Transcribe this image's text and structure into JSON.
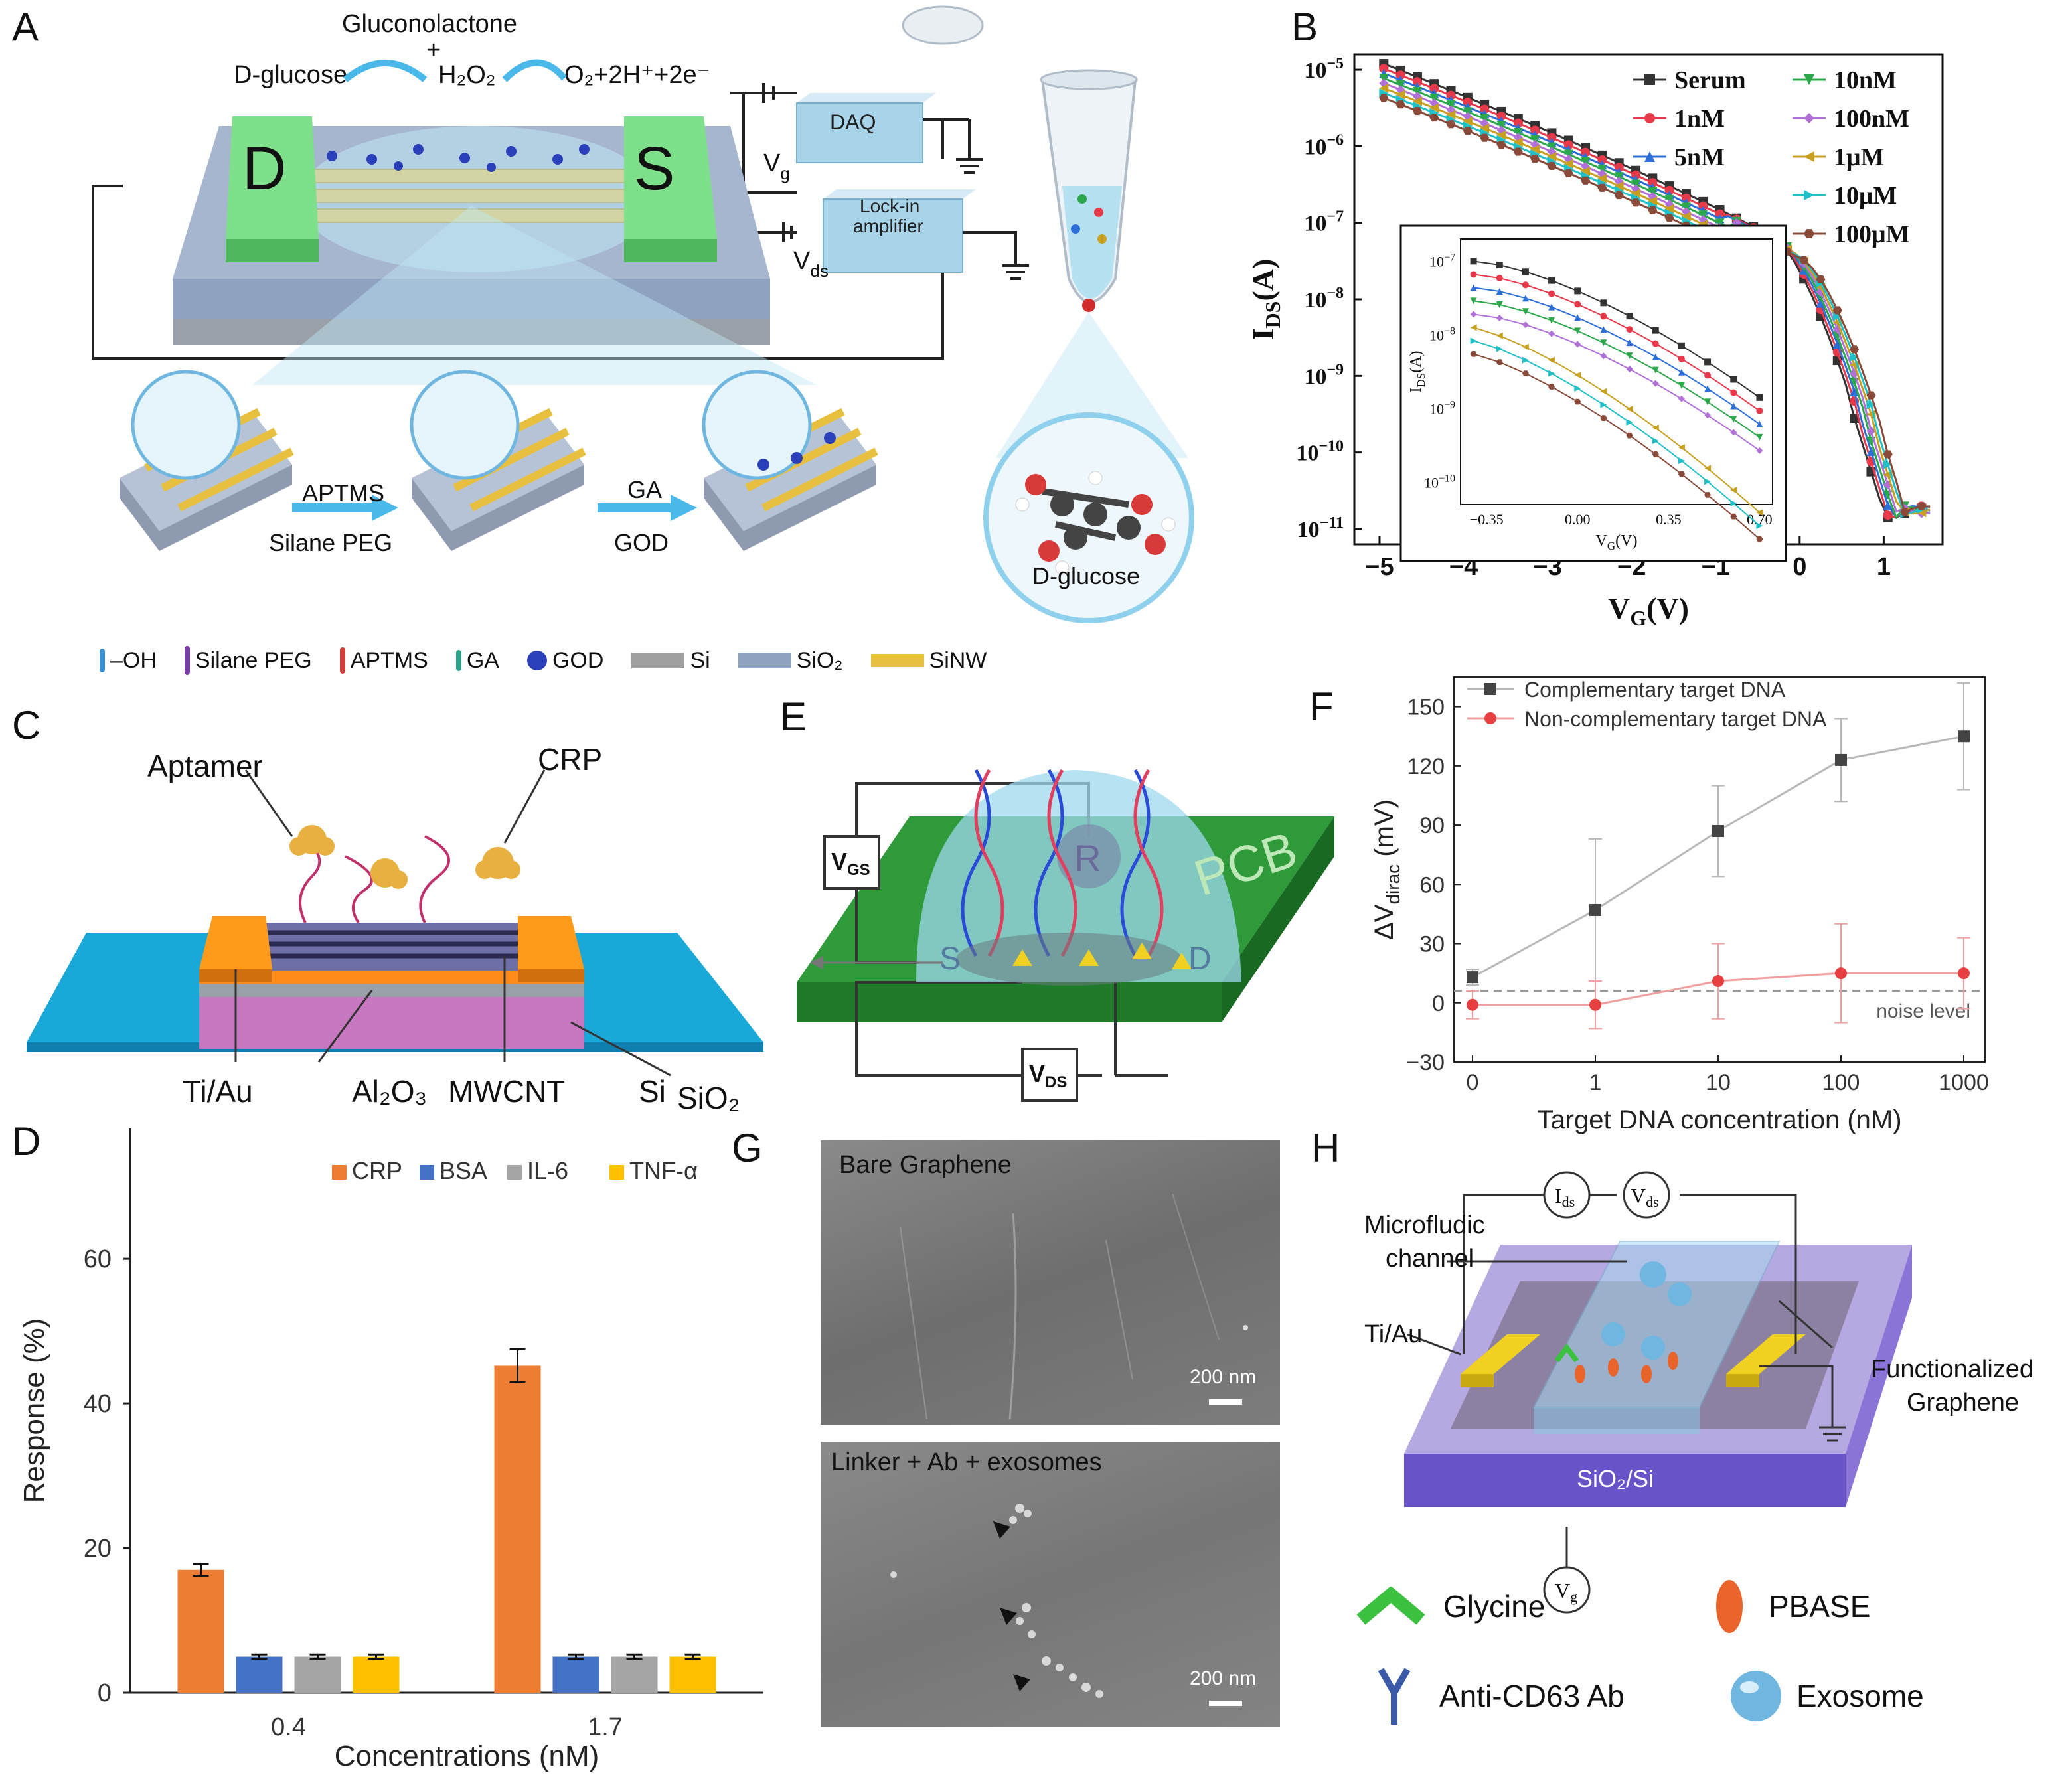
{
  "panels": {
    "A": {
      "label": "A",
      "reaction": {
        "left": "D-glucose",
        "mid_top": "Gluconolactone",
        "plus": "+",
        "mid_bottom": "H₂O₂",
        "right": "O₂+2H⁺+2e⁻"
      },
      "device": {
        "drain": "D",
        "source": "S",
        "daq": "DAQ",
        "lockin_line1": "Lock-in",
        "lockin_line2": "amplifier",
        "vg": "V",
        "vg_sub": "g",
        "vds": "V",
        "vds_sub": "ds"
      },
      "steps": {
        "step1_top": "APTMS",
        "step1_bottom": "Silane PEG",
        "step2_top": "GA",
        "step2_bottom": "GOD"
      },
      "molecule_label": "D-glucose",
      "legend": [
        {
          "label": "–OH",
          "color": "#3a8fd0"
        },
        {
          "label": "Silane PEG",
          "color": "#7a3ea8"
        },
        {
          "label": "APTMS",
          "color": "#d0403a"
        },
        {
          "label": "GA",
          "color": "#2aa08a"
        },
        {
          "label": "GOD",
          "color": "#2a3fb8"
        },
        {
          "label": "Si",
          "color": "#a0a0a0"
        },
        {
          "label": "SiO₂",
          "color": "#8fa3c0"
        },
        {
          "label": "SiNW",
          "color": "#e8c040"
        }
      ]
    },
    "B": {
      "label": "B",
      "chart_data": {
        "type": "line",
        "xlabel": "V",
        "xlabel_sub": "G",
        "xlabel_unit": "(V)",
        "ylabel": "I",
        "ylabel_sub": "DS",
        "ylabel_unit": "(A)",
        "xlim": [
          -5.3,
          1.7
        ],
        "ylim_log10": [
          -11.2,
          -4.8
        ],
        "xticks": [
          -5,
          -4,
          -3,
          -2,
          -1,
          0,
          1
        ],
        "yticks_exp": [
          -11,
          -10,
          -9,
          -8,
          -7,
          -6,
          -5
        ],
        "y_tick_base": "10",
        "series": [
          {
            "name": "Serum",
            "color": "#333333",
            "marker": "square"
          },
          {
            "name": "1nM",
            "color": "#e8394a",
            "marker": "circle"
          },
          {
            "name": "5nM",
            "color": "#2d6fd8",
            "marker": "triangle"
          },
          {
            "name": "10nM",
            "color": "#2aa84a",
            "marker": "triangle-down"
          },
          {
            "name": "100nM",
            "color": "#b070d8",
            "marker": "diamond"
          },
          {
            "name": "1μM",
            "color": "#c8a020",
            "marker": "triangle-left"
          },
          {
            "name": "10μM",
            "color": "#20c0c8",
            "marker": "triangle-right"
          },
          {
            "name": "100μM",
            "color": "#8a4a3a",
            "marker": "hexagon"
          }
        ],
        "inset": {
          "xlabel": "V",
          "xlabel_sub": "G",
          "xlabel_unit": "(V)",
          "ylabel": "I",
          "ylabel_sub": "DS",
          "ylabel_unit": "(A)",
          "xticks": [
            "-0.35",
            "0.00",
            "0.35",
            "0.70"
          ],
          "yticks_exp": [
            -7,
            -8,
            -9,
            -10
          ]
        }
      }
    },
    "C": {
      "label": "C",
      "labels": {
        "aptamer": "Aptamer",
        "crp": "CRP",
        "tiau": "Ti/Au",
        "al2o3": "Al₂O₃",
        "mwcnt": "MWCNT",
        "si": "Si",
        "sio2": "SiO₂"
      }
    },
    "D": {
      "label": "D",
      "chart_data": {
        "type": "bar",
        "categories": [
          "0.4",
          "1.7"
        ],
        "series": [
          {
            "name": "CRP",
            "color": "#ed7d31",
            "values": [
              17,
              45.2
            ],
            "errors": [
              0.8,
              2.3
            ]
          },
          {
            "name": "BSA",
            "color": "#4472c4",
            "values": [
              5,
              5
            ],
            "errors": [
              0.3,
              0.3
            ]
          },
          {
            "name": "IL-6",
            "color": "#a5a5a5",
            "values": [
              5,
              5
            ],
            "errors": [
              0.3,
              0.3
            ]
          },
          {
            "name": "TNF-α",
            "color": "#ffc000",
            "values": [
              5,
              5
            ],
            "errors": [
              0.3,
              0.3
            ]
          }
        ],
        "xlabel": "Concentrations (nM)",
        "ylabel": "Response (%)",
        "ylim": [
          0,
          78
        ],
        "yticks": [
          0,
          20,
          40,
          60
        ],
        "legend_position": "top-right"
      }
    },
    "E": {
      "label": "E",
      "labels": {
        "vgs": "V",
        "vgs_sub": "GS",
        "vds": "V",
        "vds_sub": "DS",
        "pcb": "PCB",
        "r": "R",
        "s": "S",
        "d": "D"
      }
    },
    "F": {
      "label": "F",
      "chart_data": {
        "type": "line",
        "xscale": "log-with-zero",
        "x": [
          0,
          1,
          10,
          100,
          1000
        ],
        "xticks": [
          "0",
          "1",
          "10",
          "100",
          "1000"
        ],
        "xlabel": "Target DNA concentration (nM)",
        "ylabel": "ΔV",
        "ylabel_sub": "dirac",
        "ylabel_unit": " (mV)",
        "ylim": [
          -30,
          165
        ],
        "yticks": [
          -30,
          0,
          30,
          60,
          90,
          120,
          150
        ],
        "noise_level": 6,
        "noise_label": "noise level",
        "series": [
          {
            "name": "Complementary target DNA",
            "color": "#444444",
            "marker": "square",
            "line_color": "#b8b8b8",
            "values": [
              13,
              47,
              87,
              123,
              135
            ],
            "errors": [
              4,
              36,
              23,
              21,
              27
            ]
          },
          {
            "name": "Non-complementary target DNA",
            "color": "#e84040",
            "marker": "circle",
            "line_color": "#f0a0a0",
            "values": [
              -1,
              -1,
              11,
              15,
              15
            ],
            "errors": [
              7,
              12,
              19,
              25,
              18
            ]
          }
        ]
      }
    },
    "G": {
      "label": "G",
      "top_caption": "Bare Graphene",
      "bottom_caption": "Linker + Ab + exosomes",
      "scale_top": "200 nm",
      "scale_bottom": "200 nm"
    },
    "H": {
      "label": "H",
      "labels": {
        "ids": "I",
        "ids_sub": "ds",
        "vds": "V",
        "vds_sub": "ds",
        "micro1": "Microfludic",
        "micro2": "channel",
        "tiau": "Ti/Au",
        "func1": "Functionalized",
        "func2": "Graphene",
        "substrate": "SiO₂/Si",
        "vg": "V",
        "vg_sub": "g"
      },
      "legend": [
        {
          "label": "Glycine",
          "color": "#3cc040"
        },
        {
          "label": "PBASE",
          "color": "#e8642a"
        },
        {
          "label": "Anti-CD63 Ab",
          "color": "#3a5aa8"
        },
        {
          "label": "Exosome",
          "color": "#6fb6e0"
        }
      ]
    }
  }
}
